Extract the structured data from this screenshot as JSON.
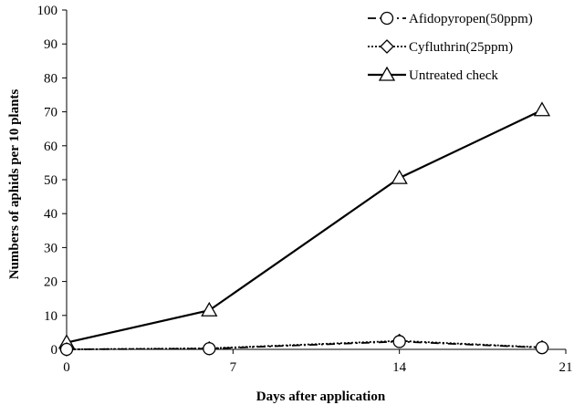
{
  "chart_data": {
    "type": "line",
    "xlabel": "Days after application",
    "ylabel": "Numbers of aphids per 10 plants",
    "xlim": [
      0,
      21
    ],
    "ylim": [
      0,
      100
    ],
    "x_ticks": [
      0,
      7,
      14,
      21
    ],
    "y_ticks": [
      0,
      10,
      20,
      30,
      40,
      50,
      60,
      70,
      80,
      90,
      100
    ],
    "grid": false,
    "legend_position": "top-right",
    "series": [
      {
        "name": "Afidopyropen(50ppm)",
        "marker": "circle",
        "line_style": "dash-dot",
        "x": [
          0,
          6,
          14,
          20
        ],
        "values": [
          0,
          0.2,
          2.3,
          0.5
        ]
      },
      {
        "name": "Cyfluthrin(25ppm)",
        "marker": "diamond",
        "line_style": "dotted",
        "x": [
          0,
          6,
          14,
          20
        ],
        "values": [
          0,
          0.3,
          2.5,
          0.6
        ]
      },
      {
        "name": "Untreated check",
        "marker": "triangle",
        "line_style": "solid",
        "x": [
          0,
          6,
          14,
          20
        ],
        "values": [
          2,
          11.5,
          50.5,
          70.5
        ]
      }
    ]
  }
}
